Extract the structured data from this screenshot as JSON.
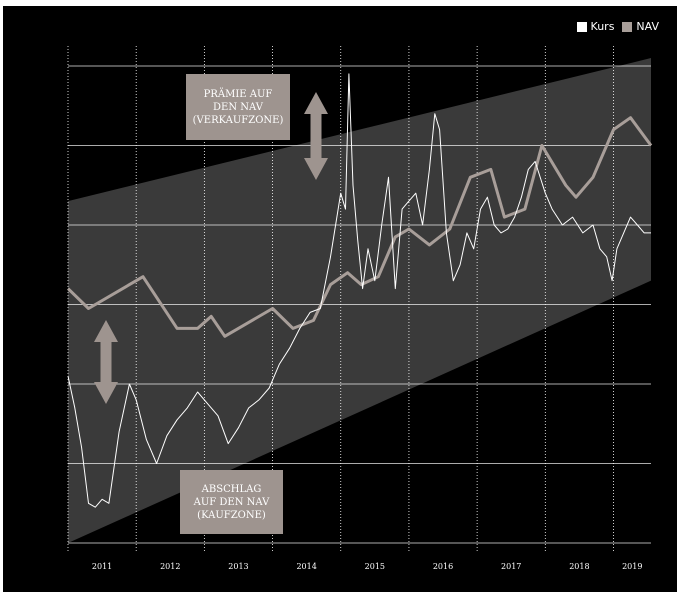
{
  "colors": {
    "background": "#000000",
    "band": "#3a3a3a",
    "kurs": "#ffffff",
    "nav": "#a89e99",
    "callout": "#9e948f",
    "grid": "#ffffff"
  },
  "legend": {
    "kurs_label": "Kurs",
    "nav_label": "NAV",
    "placement": "top-right"
  },
  "annotations": {
    "top": "PRÄMIE AUF\nDEN NAV\n(VERKAUFZONE)",
    "bottom": "ABSCHLAG\nAUF DEN NAV\n(KAUFZONE)"
  },
  "chart_data": {
    "type": "line",
    "title": "",
    "xlabel": "",
    "ylabel": "",
    "x_categories": [
      "2011",
      "2012",
      "2013",
      "2014",
      "2015",
      "2016",
      "2017",
      "2018",
      "2019"
    ],
    "xlim": [
      2011.0,
      2019.55
    ],
    "ylim": [
      0,
      6
    ],
    "grid": {
      "horizontal": true,
      "vertical": true,
      "vertical_style": "dotted"
    },
    "band": {
      "lower": [
        [
          2011.0,
          0.0
        ],
        [
          2019.55,
          3.3
        ]
      ],
      "upper": [
        [
          2011.0,
          4.3
        ],
        [
          2019.55,
          6.1
        ]
      ]
    },
    "series": [
      {
        "name": "NAV",
        "values": [
          [
            2011.0,
            3.2
          ],
          [
            2011.3,
            2.95
          ],
          [
            2012.1,
            3.35
          ],
          [
            2012.6,
            2.7
          ],
          [
            2012.9,
            2.7
          ],
          [
            2013.1,
            2.85
          ],
          [
            2013.3,
            2.6
          ],
          [
            2014.0,
            2.95
          ],
          [
            2014.3,
            2.7
          ],
          [
            2014.6,
            2.8
          ],
          [
            2014.85,
            3.25
          ],
          [
            2015.1,
            3.4
          ],
          [
            2015.3,
            3.25
          ],
          [
            2015.55,
            3.35
          ],
          [
            2015.8,
            3.85
          ],
          [
            2016.0,
            3.95
          ],
          [
            2016.3,
            3.75
          ],
          [
            2016.6,
            3.95
          ],
          [
            2016.9,
            4.6
          ],
          [
            2017.2,
            4.7
          ],
          [
            2017.4,
            4.1
          ],
          [
            2017.7,
            4.2
          ],
          [
            2017.95,
            5.0
          ],
          [
            2018.3,
            4.5
          ],
          [
            2018.45,
            4.35
          ],
          [
            2018.7,
            4.6
          ],
          [
            2019.0,
            5.2
          ],
          [
            2019.25,
            5.35
          ],
          [
            2019.55,
            5.0
          ]
        ]
      },
      {
        "name": "Kurs",
        "values": [
          [
            2011.0,
            2.1
          ],
          [
            2011.1,
            1.7
          ],
          [
            2011.2,
            1.2
          ],
          [
            2011.3,
            0.5
          ],
          [
            2011.4,
            0.45
          ],
          [
            2011.5,
            0.55
          ],
          [
            2011.6,
            0.5
          ],
          [
            2011.75,
            1.4
          ],
          [
            2011.9,
            2.0
          ],
          [
            2012.0,
            1.8
          ],
          [
            2012.15,
            1.3
          ],
          [
            2012.3,
            1.0
          ],
          [
            2012.45,
            1.35
          ],
          [
            2012.6,
            1.55
          ],
          [
            2012.75,
            1.7
          ],
          [
            2012.9,
            1.9
          ],
          [
            2013.05,
            1.75
          ],
          [
            2013.2,
            1.6
          ],
          [
            2013.35,
            1.25
          ],
          [
            2013.5,
            1.45
          ],
          [
            2013.65,
            1.7
          ],
          [
            2013.8,
            1.8
          ],
          [
            2013.95,
            1.95
          ],
          [
            2014.1,
            2.25
          ],
          [
            2014.25,
            2.45
          ],
          [
            2014.4,
            2.7
          ],
          [
            2014.55,
            2.9
          ],
          [
            2014.7,
            2.95
          ],
          [
            2014.85,
            3.6
          ],
          [
            2015.0,
            4.4
          ],
          [
            2015.07,
            4.2
          ],
          [
            2015.12,
            5.9
          ],
          [
            2015.18,
            4.5
          ],
          [
            2015.25,
            3.8
          ],
          [
            2015.32,
            3.2
          ],
          [
            2015.4,
            3.7
          ],
          [
            2015.5,
            3.3
          ],
          [
            2015.6,
            4.0
          ],
          [
            2015.7,
            4.6
          ],
          [
            2015.8,
            3.2
          ],
          [
            2015.9,
            4.2
          ],
          [
            2016.0,
            4.3
          ],
          [
            2016.1,
            4.4
          ],
          [
            2016.2,
            4.0
          ],
          [
            2016.3,
            4.7
          ],
          [
            2016.38,
            5.4
          ],
          [
            2016.45,
            5.2
          ],
          [
            2016.55,
            3.9
          ],
          [
            2016.65,
            3.3
          ],
          [
            2016.75,
            3.5
          ],
          [
            2016.85,
            3.9
          ],
          [
            2016.95,
            3.7
          ],
          [
            2017.05,
            4.2
          ],
          [
            2017.15,
            4.35
          ],
          [
            2017.25,
            4.0
          ],
          [
            2017.35,
            3.9
          ],
          [
            2017.45,
            3.95
          ],
          [
            2017.55,
            4.1
          ],
          [
            2017.65,
            4.35
          ],
          [
            2017.75,
            4.7
          ],
          [
            2017.85,
            4.8
          ],
          [
            2018.0,
            4.4
          ],
          [
            2018.1,
            4.2
          ],
          [
            2018.25,
            4.0
          ],
          [
            2018.4,
            4.1
          ],
          [
            2018.55,
            3.9
          ],
          [
            2018.7,
            4.0
          ],
          [
            2018.8,
            3.7
          ],
          [
            2018.9,
            3.6
          ],
          [
            2018.98,
            3.3
          ],
          [
            2019.05,
            3.7
          ],
          [
            2019.15,
            3.9
          ],
          [
            2019.25,
            4.1
          ],
          [
            2019.35,
            4.0
          ],
          [
            2019.45,
            3.9
          ],
          [
            2019.55,
            3.9
          ]
        ]
      }
    ]
  }
}
